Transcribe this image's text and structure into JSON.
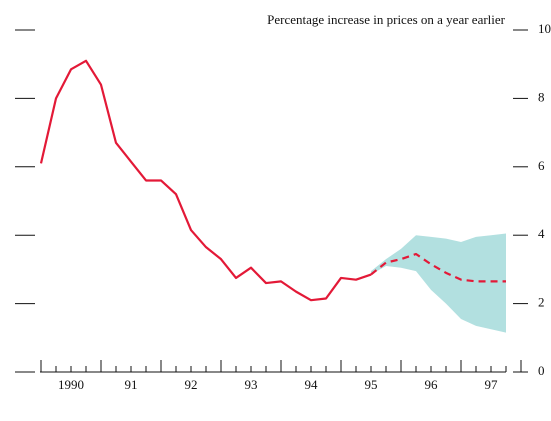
{
  "chart_data": {
    "type": "line",
    "title": "Percentage increase in prices on a year earlier",
    "x": [
      1990,
      1990.25,
      1990.5,
      1990.75,
      1991,
      1991.25,
      1991.5,
      1991.75,
      1992,
      1992.25,
      1992.5,
      1992.75,
      1993,
      1993.25,
      1993.5,
      1993.75,
      1994,
      1994.25,
      1994.5,
      1994.75,
      1995,
      1995.25,
      1995.5,
      1995.75,
      1996,
      1996.25,
      1996.5,
      1996.75,
      1997,
      1997.25,
      1997.5,
      1997.75
    ],
    "series": [
      {
        "color": "#e31937",
        "style": "solid",
        "values": [
          6.1,
          8.0,
          8.85,
          9.1,
          8.4,
          6.7,
          6.15,
          5.6,
          5.6,
          5.2,
          4.15,
          3.65,
          3.3,
          2.75,
          3.05,
          2.6,
          2.65,
          2.35,
          2.1,
          2.15,
          2.75,
          2.7,
          2.85,
          null,
          null,
          null,
          null,
          null,
          null,
          null,
          null,
          null
        ]
      },
      {
        "color": "#e31937",
        "style": "dashed",
        "values": [
          null,
          null,
          null,
          null,
          null,
          null,
          null,
          null,
          null,
          null,
          null,
          null,
          null,
          null,
          null,
          null,
          null,
          null,
          null,
          null,
          null,
          null,
          2.85,
          3.2,
          3.3,
          3.45,
          3.15,
          2.9,
          2.7,
          2.65,
          2.65,
          2.65
        ]
      }
    ],
    "band": {
      "color": "#b2e0e0",
      "lower": [
        null,
        null,
        null,
        null,
        null,
        null,
        null,
        null,
        null,
        null,
        null,
        null,
        null,
        null,
        null,
        null,
        null,
        null,
        null,
        null,
        null,
        null,
        2.85,
        3.1,
        3.05,
        2.95,
        2.4,
        2.0,
        1.55,
        1.35,
        1.25,
        1.15
      ],
      "upper": [
        null,
        null,
        null,
        null,
        null,
        null,
        null,
        null,
        null,
        null,
        null,
        null,
        null,
        null,
        null,
        null,
        null,
        null,
        null,
        null,
        null,
        null,
        2.95,
        3.3,
        3.6,
        4.0,
        3.95,
        3.9,
        3.8,
        3.95,
        4.0,
        4.05
      ]
    },
    "xlim": [
      1990,
      1997.75
    ],
    "xticks": [
      {
        "value": 1990.5,
        "label": "1990"
      },
      {
        "value": 1991.5,
        "label": "91"
      },
      {
        "value": 1992.5,
        "label": "92"
      },
      {
        "value": 1993.5,
        "label": "93"
      },
      {
        "value": 1994.5,
        "label": "94"
      },
      {
        "value": 1995.5,
        "label": "95"
      },
      {
        "value": 1996.5,
        "label": "96"
      },
      {
        "value": 1997.5,
        "label": "97"
      }
    ],
    "ylim": [
      0,
      10
    ],
    "yticks": [
      0,
      2,
      4,
      6,
      8,
      10
    ]
  }
}
